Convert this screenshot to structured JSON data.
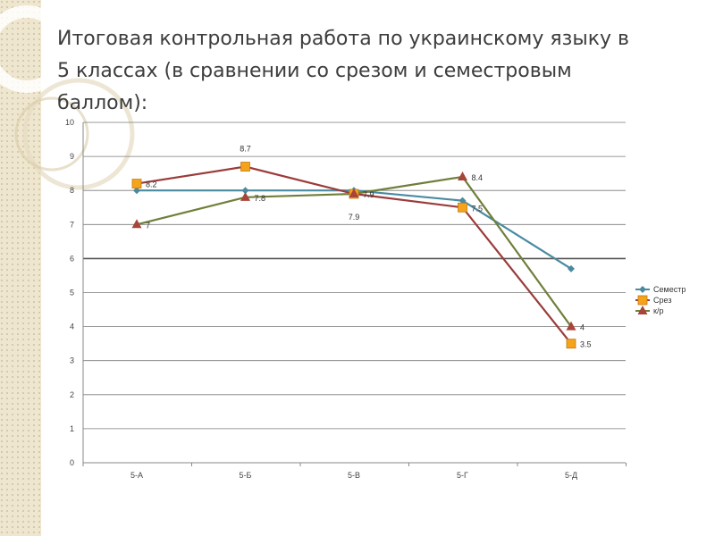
{
  "slide": {
    "title": "Итоговая  контрольная работа  по украинскому языку  в 5 классах (в сравнении со срезом и семестровым баллом):"
  },
  "colors": {
    "semester": "#4a8aa0",
    "srez": "#9b3b3b",
    "srez_marker": "#f5a31a",
    "kr": "#6f7f3a",
    "kr_marker": "#a8443a",
    "grid": "#7a7a7a",
    "grid_emph": "#555555"
  },
  "chart_data": {
    "type": "line",
    "title": "",
    "xlabel": "",
    "ylabel": "",
    "categories": [
      "5-А",
      "5-Б",
      "5-В",
      "5-Г",
      "5-Д"
    ],
    "ylim": [
      0,
      10
    ],
    "yticks": [
      "0",
      "1",
      "2",
      "3",
      "4",
      "5",
      "6",
      "7",
      "8",
      "9",
      "10"
    ],
    "grid": true,
    "legend": "right",
    "series": [
      {
        "name": "Семестр",
        "values": [
          8,
          8,
          8,
          7.7,
          5.7
        ],
        "marker": "diamond",
        "labels": []
      },
      {
        "name": "Срез",
        "values": [
          8.2,
          8.7,
          7.9,
          7.5,
          3.5
        ],
        "marker": "square",
        "labels": [
          "8.2",
          "8.7",
          "7.9",
          "7.5",
          "3.5"
        ]
      },
      {
        "name": "к/р",
        "values": [
          7,
          7.8,
          7.9,
          8.4,
          4
        ],
        "marker": "triangle",
        "labels": [
          "7",
          "7.8",
          "7.9",
          "8.4",
          "4"
        ]
      }
    ]
  }
}
